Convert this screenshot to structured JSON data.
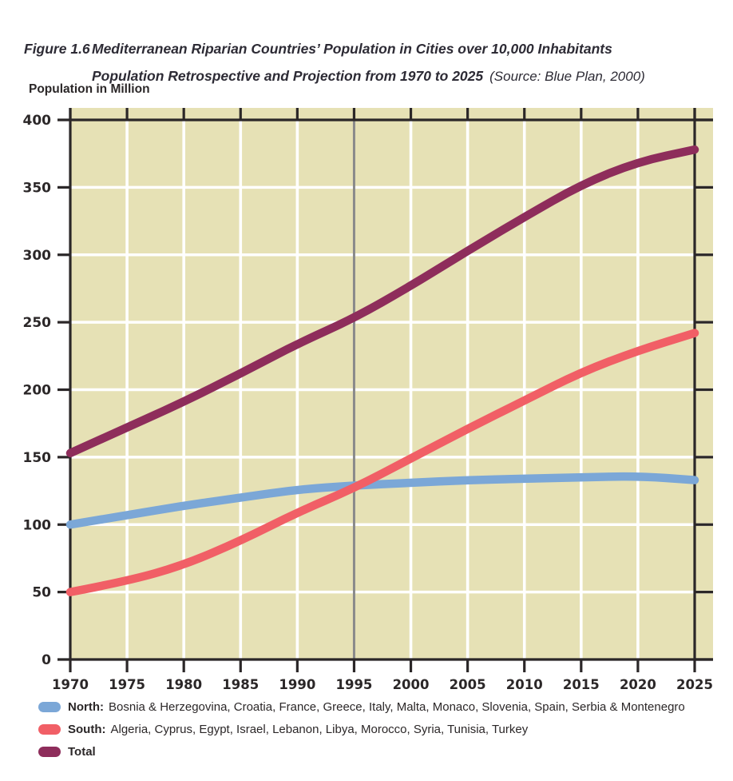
{
  "figure": {
    "label": "Figure 1.6",
    "title_line1": "Mediterranean Riparian Countries’ Population in Cities over 10,000 Inhabitants",
    "title_line2": "Population Retrospective and Projection from 1970 to 2025",
    "source": "(Source: Blue Plan, 2000)"
  },
  "y_axis_title": "Population in Million",
  "chart_data": {
    "type": "line",
    "title": "Mediterranean Riparian Countries’ Population in Cities over 10,000 Inhabitants — Population Retrospective and Projection from 1970 to 2025",
    "ylabel": "Population in Million",
    "xlabel": "",
    "x": [
      1970,
      1975,
      1980,
      1985,
      1990,
      1995,
      2000,
      2005,
      2010,
      2015,
      2020,
      2025
    ],
    "series": [
      {
        "name": "North",
        "color": "#7ba7d7",
        "values": [
          100,
          107,
          114,
          120,
          126,
          129,
          131,
          133,
          134,
          135,
          136,
          133
        ]
      },
      {
        "name": "South",
        "color": "#f15f66",
        "values": [
          50,
          58,
          70,
          88,
          109,
          127,
          149,
          171,
          192,
          213,
          229,
          242
        ]
      },
      {
        "name": "Total",
        "color": "#8e2d5b",
        "values": [
          153,
          172,
          191,
          212,
          234,
          253,
          277,
          303,
          328,
          352,
          369,
          378
        ]
      }
    ],
    "ylim": [
      0,
      400
    ],
    "y_ticks": [
      0,
      50,
      100,
      150,
      200,
      250,
      300,
      350,
      400
    ],
    "x_ticks": [
      1970,
      1975,
      1980,
      1985,
      1990,
      1995,
      2000,
      2005,
      2010,
      2015,
      2020,
      2025
    ],
    "divider_x": 1995,
    "grid": true,
    "plot_bg": "#e6e1b5",
    "grid_color": "#ffffff",
    "axis_color": "#2b2728",
    "divider_color": "#8a8a8a",
    "legend_position": "bottom"
  },
  "legend": {
    "items": [
      {
        "label": "North:",
        "text": "Bosnia & Herzegovina, Croatia, France, Greece, Italy, Malta, Monaco, Slovenia, Spain, Serbia & Montenegro",
        "color": "#7ba7d7"
      },
      {
        "label": "South:",
        "text": "Algeria, Cyprus, Egypt, Israel, Lebanon, Libya, Morocco, Syria, Tunisia, Turkey",
        "color": "#f15f66"
      },
      {
        "label": "Total",
        "text": "",
        "color": "#8e2d5b"
      }
    ]
  }
}
